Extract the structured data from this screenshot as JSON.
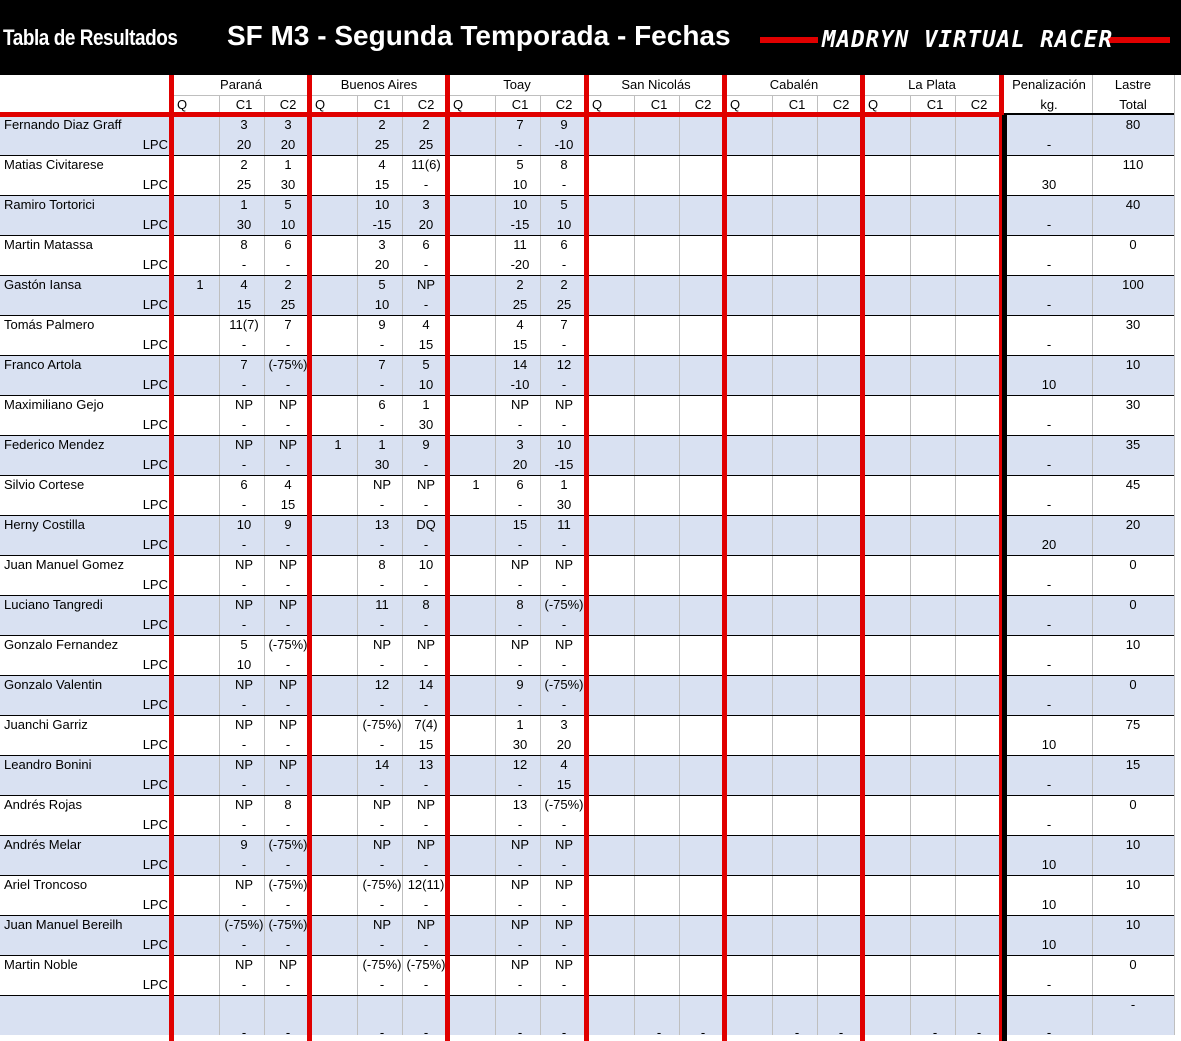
{
  "header": {
    "left_title": "Tabla de Resultados",
    "center_title": "SF M3 - Segunda Temporada - Fechas",
    "brand": "MADRYN VIRTUAL RACER"
  },
  "events": [
    "Paraná",
    "Buenos Aires",
    "Toay",
    "San Nicolás",
    "Cabalén",
    "La Plata"
  ],
  "session_labels": [
    "Q",
    "C1",
    "C2"
  ],
  "penalty_header": [
    "Penalización",
    "kg."
  ],
  "ballast_header": [
    "Lastre",
    "Total"
  ],
  "points_row_label": "LPC",
  "colors": {
    "header_bg": "#000000",
    "accent_red": "#e00000",
    "band_blue": "#d9e1f2",
    "grid_line": "#bfbfbf"
  },
  "drivers": [
    {
      "name": "Fernando Diaz Graff",
      "results": [
        [
          "",
          "3",
          "3"
        ],
        [
          "",
          "2",
          "2"
        ],
        [
          "",
          "7",
          "9"
        ]
      ],
      "points": [
        [
          "",
          "20",
          "20"
        ],
        [
          "",
          "25",
          "25"
        ],
        [
          "",
          "-",
          "-10"
        ]
      ],
      "penalty": "-",
      "ballast": "80"
    },
    {
      "name": "Matias Civitarese",
      "results": [
        [
          "",
          "2",
          "1"
        ],
        [
          "",
          "4",
          "11(6)"
        ],
        [
          "",
          "5",
          "8"
        ]
      ],
      "points": [
        [
          "",
          "25",
          "30"
        ],
        [
          "",
          "15",
          "-"
        ],
        [
          "",
          "10",
          "-"
        ]
      ],
      "penalty": "30",
      "ballast": "110"
    },
    {
      "name": "Ramiro Tortorici",
      "results": [
        [
          "",
          "1",
          "5"
        ],
        [
          "",
          "10",
          "3"
        ],
        [
          "",
          "10",
          "5"
        ]
      ],
      "points": [
        [
          "",
          "30",
          "10"
        ],
        [
          "",
          "-15",
          "20"
        ],
        [
          "",
          "-15",
          "10"
        ]
      ],
      "penalty": "-",
      "ballast": "40"
    },
    {
      "name": "Martin Matassa",
      "results": [
        [
          "",
          "8",
          "6"
        ],
        [
          "",
          "3",
          "6"
        ],
        [
          "",
          "11",
          "6"
        ]
      ],
      "points": [
        [
          "",
          "-",
          "-"
        ],
        [
          "",
          "20",
          "-"
        ],
        [
          "",
          "-20",
          "-"
        ]
      ],
      "penalty": "-",
      "ballast": "0"
    },
    {
      "name": "Gastón Iansa",
      "results": [
        [
          "1",
          "4",
          "2"
        ],
        [
          "",
          "5",
          "NP"
        ],
        [
          "",
          "2",
          "2"
        ]
      ],
      "points": [
        [
          "",
          "15",
          "25"
        ],
        [
          "",
          "10",
          "-"
        ],
        [
          "",
          "25",
          "25"
        ]
      ],
      "penalty": "-",
      "ballast": "100"
    },
    {
      "name": "Tomás Palmero",
      "results": [
        [
          "",
          "11(7)",
          "7"
        ],
        [
          "",
          "9",
          "4"
        ],
        [
          "",
          "4",
          "7"
        ]
      ],
      "points": [
        [
          "",
          "-",
          "-"
        ],
        [
          "",
          "-",
          "15"
        ],
        [
          "",
          "15",
          "-"
        ]
      ],
      "penalty": "-",
      "ballast": "30"
    },
    {
      "name": "Franco Artola",
      "results": [
        [
          "",
          "7",
          "(-75%)"
        ],
        [
          "",
          "7",
          "5"
        ],
        [
          "",
          "14",
          "12"
        ]
      ],
      "points": [
        [
          "",
          "-",
          "-"
        ],
        [
          "",
          "-",
          "10"
        ],
        [
          "",
          "-10",
          "-"
        ]
      ],
      "penalty": "10",
      "ballast": "10"
    },
    {
      "name": "Maximiliano Gejo",
      "results": [
        [
          "",
          "NP",
          "NP"
        ],
        [
          "",
          "6",
          "1"
        ],
        [
          "",
          "NP",
          "NP"
        ]
      ],
      "points": [
        [
          "",
          "-",
          "-"
        ],
        [
          "",
          "-",
          "30"
        ],
        [
          "",
          "-",
          "-"
        ]
      ],
      "penalty": "-",
      "ballast": "30"
    },
    {
      "name": "Federico Mendez",
      "results": [
        [
          "",
          "NP",
          "NP"
        ],
        [
          "1",
          "1",
          "9"
        ],
        [
          "",
          "3",
          "10"
        ]
      ],
      "points": [
        [
          "",
          "-",
          "-"
        ],
        [
          "",
          "30",
          "-"
        ],
        [
          "",
          "20",
          "-15"
        ]
      ],
      "penalty": "-",
      "ballast": "35"
    },
    {
      "name": "Silvio Cortese",
      "results": [
        [
          "",
          "6",
          "4"
        ],
        [
          "",
          "NP",
          "NP"
        ],
        [
          "1",
          "6",
          "1"
        ]
      ],
      "points": [
        [
          "",
          "-",
          "15"
        ],
        [
          "",
          "-",
          "-"
        ],
        [
          "",
          "-",
          "30"
        ]
      ],
      "penalty": "-",
      "ballast": "45"
    },
    {
      "name": "Herny Costilla",
      "results": [
        [
          "",
          "10",
          "9"
        ],
        [
          "",
          "13",
          "DQ"
        ],
        [
          "",
          "15",
          "11"
        ]
      ],
      "points": [
        [
          "",
          "-",
          "-"
        ],
        [
          "",
          "-",
          "-"
        ],
        [
          "",
          "-",
          "-"
        ]
      ],
      "penalty": "20",
      "ballast": "20"
    },
    {
      "name": "Juan Manuel Gomez",
      "results": [
        [
          "",
          "NP",
          "NP"
        ],
        [
          "",
          "8",
          "10"
        ],
        [
          "",
          "NP",
          "NP"
        ]
      ],
      "points": [
        [
          "",
          "-",
          "-"
        ],
        [
          "",
          "-",
          "-"
        ],
        [
          "",
          "-",
          "-"
        ]
      ],
      "penalty": "-",
      "ballast": "0"
    },
    {
      "name": "Luciano Tangredi",
      "results": [
        [
          "",
          "NP",
          "NP"
        ],
        [
          "",
          "11",
          "8"
        ],
        [
          "",
          "8",
          "(-75%)"
        ]
      ],
      "points": [
        [
          "",
          "-",
          "-"
        ],
        [
          "",
          "-",
          "-"
        ],
        [
          "",
          "-",
          "-"
        ]
      ],
      "penalty": "-",
      "ballast": "0"
    },
    {
      "name": "Gonzalo Fernandez",
      "results": [
        [
          "",
          "5",
          "(-75%)"
        ],
        [
          "",
          "NP",
          "NP"
        ],
        [
          "",
          "NP",
          "NP"
        ]
      ],
      "points": [
        [
          "",
          "10",
          "-"
        ],
        [
          "",
          "-",
          "-"
        ],
        [
          "",
          "-",
          "-"
        ]
      ],
      "penalty": "-",
      "ballast": "10"
    },
    {
      "name": "Gonzalo Valentin",
      "results": [
        [
          "",
          "NP",
          "NP"
        ],
        [
          "",
          "12",
          "14"
        ],
        [
          "",
          "9",
          "(-75%)"
        ]
      ],
      "points": [
        [
          "",
          "-",
          "-"
        ],
        [
          "",
          "-",
          "-"
        ],
        [
          "",
          "-",
          "-"
        ]
      ],
      "penalty": "-",
      "ballast": "0"
    },
    {
      "name": "Juanchi Garriz",
      "results": [
        [
          "",
          "NP",
          "NP"
        ],
        [
          "",
          "(-75%)",
          "7(4)"
        ],
        [
          "",
          "1",
          "3"
        ]
      ],
      "points": [
        [
          "",
          "-",
          "-"
        ],
        [
          "",
          "-",
          "15"
        ],
        [
          "",
          "30",
          "20"
        ]
      ],
      "penalty": "10",
      "ballast": "75"
    },
    {
      "name": "Leandro Bonini",
      "results": [
        [
          "",
          "NP",
          "NP"
        ],
        [
          "",
          "14",
          "13"
        ],
        [
          "",
          "12",
          "4"
        ]
      ],
      "points": [
        [
          "",
          "-",
          "-"
        ],
        [
          "",
          "-",
          "-"
        ],
        [
          "",
          "-",
          "15"
        ]
      ],
      "penalty": "-",
      "ballast": "15"
    },
    {
      "name": "Andrés Rojas",
      "results": [
        [
          "",
          "NP",
          "8"
        ],
        [
          "",
          "NP",
          "NP"
        ],
        [
          "",
          "13",
          "(-75%)"
        ]
      ],
      "points": [
        [
          "",
          "-",
          "-"
        ],
        [
          "",
          "-",
          "-"
        ],
        [
          "",
          "-",
          "-"
        ]
      ],
      "penalty": "-",
      "ballast": "0"
    },
    {
      "name": "Andrés Melar",
      "results": [
        [
          "",
          "9",
          "(-75%)"
        ],
        [
          "",
          "NP",
          "NP"
        ],
        [
          "",
          "NP",
          "NP"
        ]
      ],
      "points": [
        [
          "",
          "-",
          "-"
        ],
        [
          "",
          "-",
          "-"
        ],
        [
          "",
          "-",
          "-"
        ]
      ],
      "penalty": "10",
      "ballast": "10"
    },
    {
      "name": "Ariel Troncoso",
      "results": [
        [
          "",
          "NP",
          "(-75%)"
        ],
        [
          "",
          "(-75%)",
          "12(11)"
        ],
        [
          "",
          "NP",
          "NP"
        ]
      ],
      "points": [
        [
          "",
          "-",
          "-"
        ],
        [
          "",
          "-",
          "-"
        ],
        [
          "",
          "-",
          "-"
        ]
      ],
      "penalty": "10",
      "ballast": "10"
    },
    {
      "name": "Juan Manuel Bereilh",
      "results": [
        [
          "",
          "(-75%)",
          "(-75%)"
        ],
        [
          "",
          "NP",
          "NP"
        ],
        [
          "",
          "NP",
          "NP"
        ]
      ],
      "points": [
        [
          "",
          "-",
          "-"
        ],
        [
          "",
          "-",
          "-"
        ],
        [
          "",
          "-",
          "-"
        ]
      ],
      "penalty": "10",
      "ballast": "10"
    },
    {
      "name": "Martin Noble",
      "results": [
        [
          "",
          "NP",
          "NP"
        ],
        [
          "",
          "(-75%)",
          "(-75%)"
        ],
        [
          "",
          "NP",
          "NP"
        ]
      ],
      "points": [
        [
          "",
          "-",
          "-"
        ],
        [
          "",
          "-",
          "-"
        ],
        [
          "",
          "-",
          "-"
        ]
      ],
      "penalty": "-",
      "ballast": "0"
    }
  ],
  "footer_row": {
    "cells": [
      [
        "",
        "-",
        "-"
      ],
      [
        "",
        "-",
        "-"
      ],
      [
        "",
        "-",
        "-"
      ],
      [
        "",
        "-",
        "-"
      ],
      [
        "",
        "-",
        "-"
      ],
      [
        "",
        "-",
        "-"
      ]
    ],
    "penalty": "-",
    "ballast": "-"
  }
}
